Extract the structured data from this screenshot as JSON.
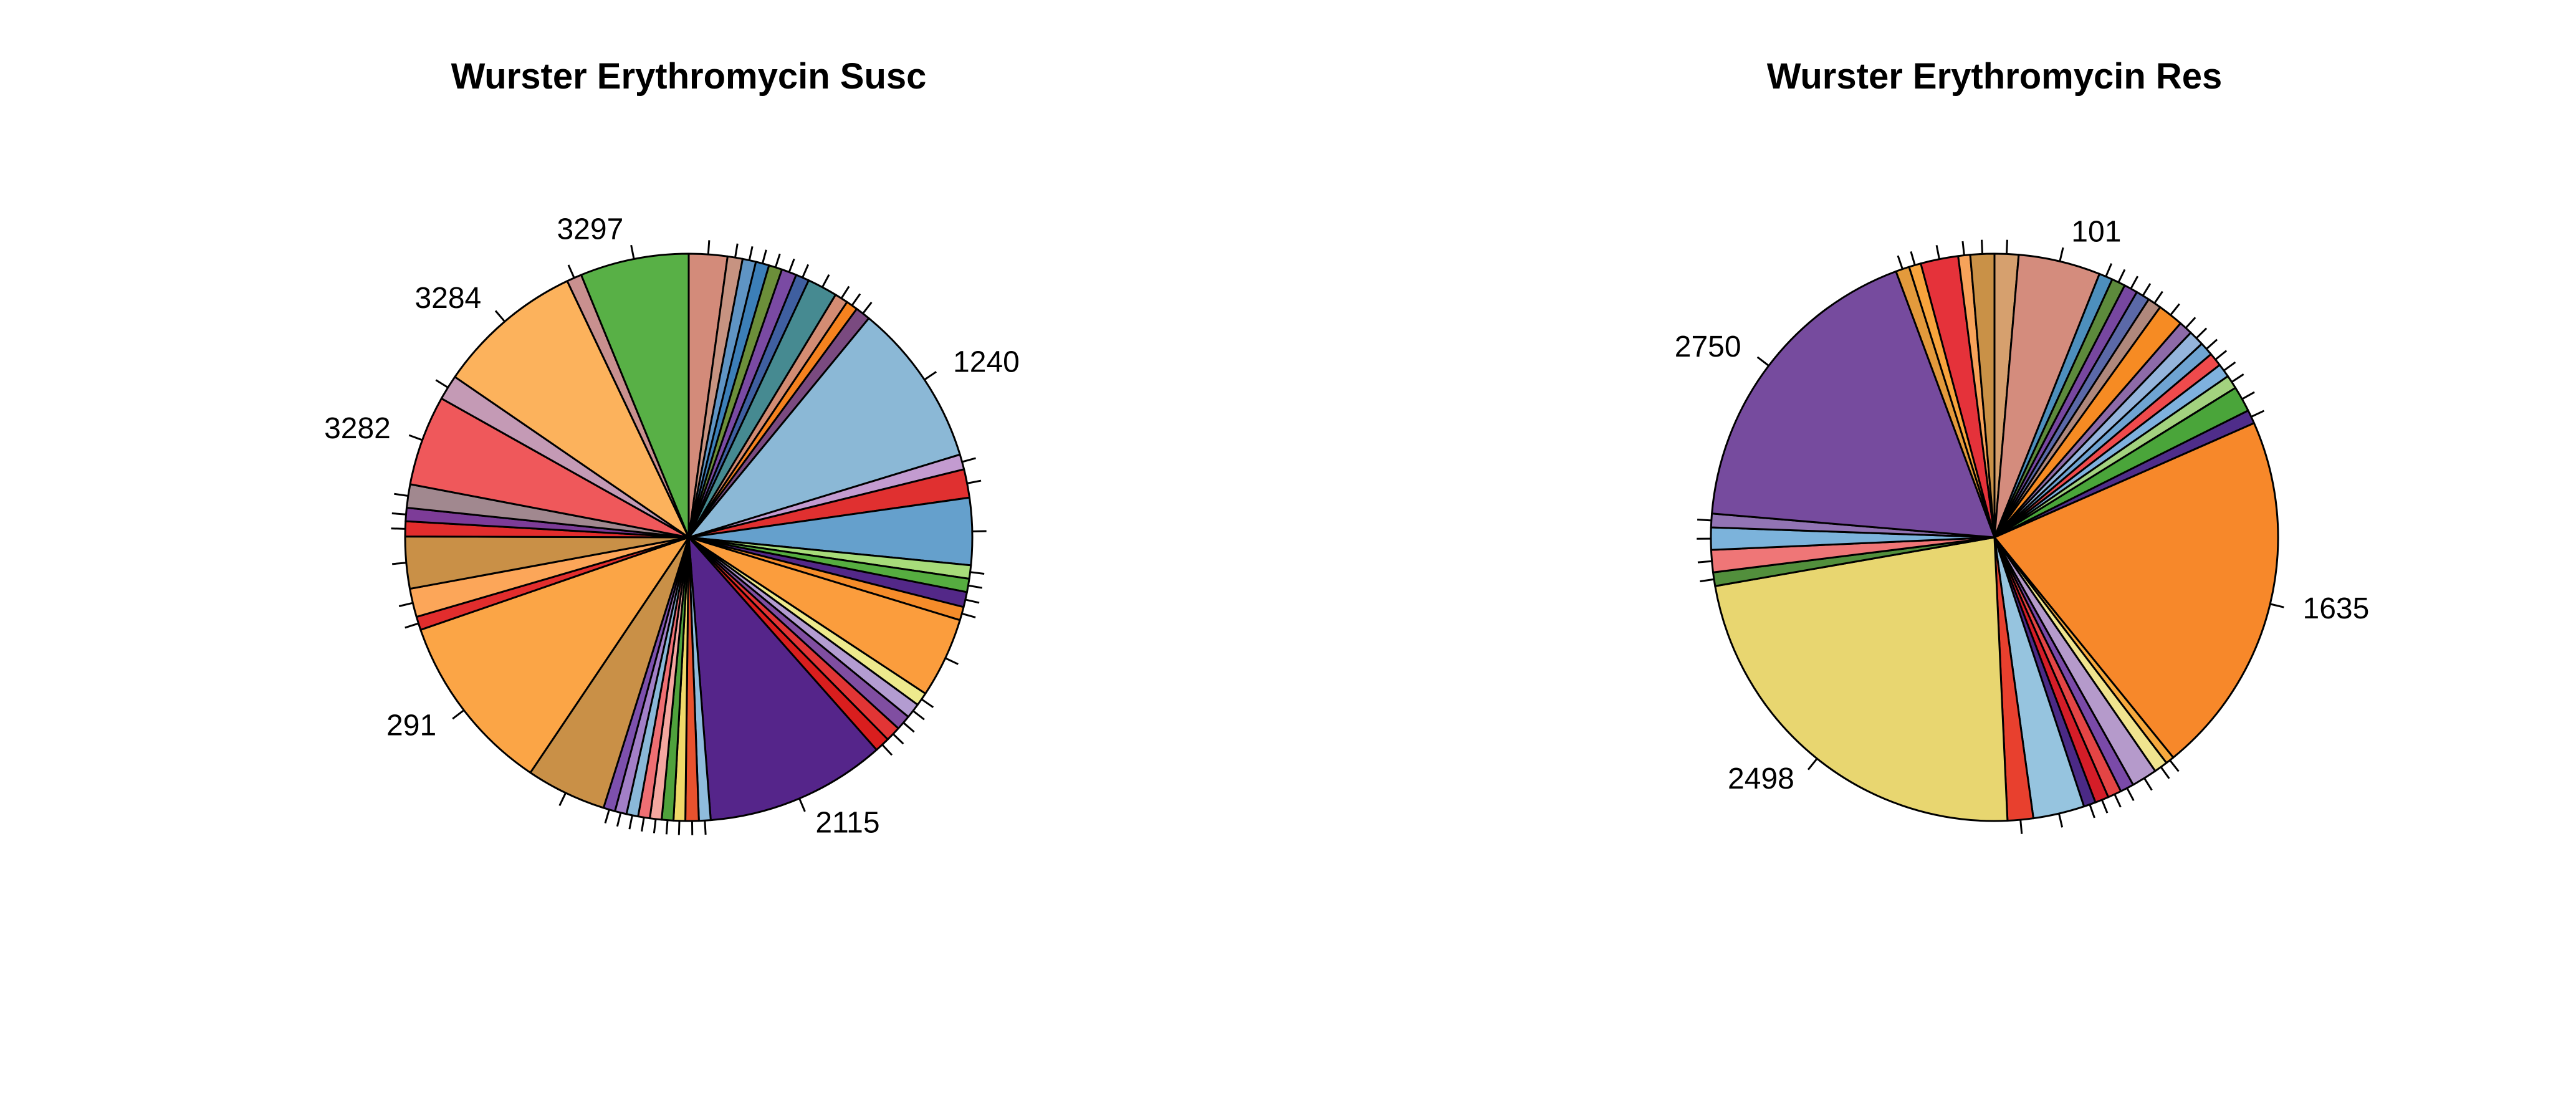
{
  "chart_data": [
    {
      "type": "pie",
      "title": "Wurster Erythromycin Susc",
      "slices": [
        {
          "label": "",
          "value": 2.3,
          "color": "#d38b7a"
        },
        {
          "label": "",
          "value": 0.9,
          "color": "#c79381"
        },
        {
          "label": "",
          "value": 0.8,
          "color": "#5f94c4"
        },
        {
          "label": "",
          "value": 0.8,
          "color": "#3c7fb8"
        },
        {
          "label": "",
          "value": 0.8,
          "color": "#6c8f3a"
        },
        {
          "label": "",
          "value": 0.9,
          "color": "#7a4aa3"
        },
        {
          "label": "",
          "value": 0.8,
          "color": "#3f5fa0"
        },
        {
          "label": "",
          "value": 1.8,
          "color": "#468a91"
        },
        {
          "label": "",
          "value": 0.8,
          "color": "#d48c73"
        },
        {
          "label": "",
          "value": 0.7,
          "color": "#f5821f"
        },
        {
          "label": "",
          "value": 0.9,
          "color": "#7a4a80"
        },
        {
          "label": "1240",
          "value": 9.8,
          "color": "#8bb8d6"
        },
        {
          "label": "",
          "value": 0.9,
          "color": "#c39bd0"
        },
        {
          "label": "",
          "value": 1.7,
          "color": "#e03030"
        },
        {
          "label": "",
          "value": 4.0,
          "color": "#65a0cc"
        },
        {
          "label": "",
          "value": 0.8,
          "color": "#a7dc7a"
        },
        {
          "label": "",
          "value": 0.8,
          "color": "#56ad40"
        },
        {
          "label": "",
          "value": 0.9,
          "color": "#532888"
        },
        {
          "label": "",
          "value": 0.8,
          "color": "#f58c2a"
        },
        {
          "label": "",
          "value": 4.8,
          "color": "#fb9d3d"
        },
        {
          "label": "",
          "value": 0.8,
          "color": "#eeea8d"
        },
        {
          "label": "",
          "value": 0.9,
          "color": "#b39cd1"
        },
        {
          "label": "",
          "value": 0.9,
          "color": "#804ea1"
        },
        {
          "label": "",
          "value": 0.9,
          "color": "#e23535"
        },
        {
          "label": "",
          "value": 0.9,
          "color": "#d91e1e"
        },
        {
          "label": "2115",
          "value": 10.8,
          "color": "#55258a"
        },
        {
          "label": "",
          "value": 0.7,
          "color": "#8fbcdc"
        },
        {
          "label": "",
          "value": 0.8,
          "color": "#e8522e"
        },
        {
          "label": "",
          "value": 0.7,
          "color": "#f0d96a"
        },
        {
          "label": "",
          "value": 0.7,
          "color": "#4fa23c"
        },
        {
          "label": "",
          "value": 0.7,
          "color": "#f4a7a0"
        },
        {
          "label": "",
          "value": 0.7,
          "color": "#ef6f73"
        },
        {
          "label": "",
          "value": 0.7,
          "color": "#8ab8d8"
        },
        {
          "label": "",
          "value": 0.7,
          "color": "#a27fc7"
        },
        {
          "label": "",
          "value": 0.7,
          "color": "#7d50ad"
        },
        {
          "label": "",
          "value": 4.8,
          "color": "#c99047"
        },
        {
          "label": "291",
          "value": 10.8,
          "color": "#fba546"
        },
        {
          "label": "",
          "value": 0.8,
          "color": "#e22d2d"
        },
        {
          "label": "",
          "value": 1.7,
          "color": "#fca659"
        },
        {
          "label": "",
          "value": 3.1,
          "color": "#c99047"
        },
        {
          "label": "",
          "value": 0.9,
          "color": "#e22d2d"
        },
        {
          "label": "",
          "value": 0.8,
          "color": "#7d3c98"
        },
        {
          "label": "",
          "value": 1.4,
          "color": "#a1888f"
        },
        {
          "label": "3282",
          "value": 5.4,
          "color": "#ef585b"
        },
        {
          "label": "",
          "value": 1.5,
          "color": "#c49ab5"
        },
        {
          "label": "3284",
          "value": 8.8,
          "color": "#fcb25c"
        },
        {
          "label": "",
          "value": 0.9,
          "color": "#c9908f"
        },
        {
          "label": "3297",
          "value": 6.5,
          "color": "#58b046"
        }
      ]
    },
    {
      "type": "pie",
      "title": "Wurster Erythromycin Res",
      "slices": [
        {
          "label": "",
          "value": 1.4,
          "color": "#d6a06e"
        },
        {
          "label": "101",
          "value": 4.8,
          "color": "#d48c7d"
        },
        {
          "label": "",
          "value": 0.8,
          "color": "#4d8fbd"
        },
        {
          "label": "",
          "value": 0.8,
          "color": "#5d8a3c"
        },
        {
          "label": "",
          "value": 0.8,
          "color": "#7747a0"
        },
        {
          "label": "",
          "value": 0.8,
          "color": "#5b69a8"
        },
        {
          "label": "",
          "value": 0.8,
          "color": "#b0887c"
        },
        {
          "label": "",
          "value": 1.5,
          "color": "#f68b23"
        },
        {
          "label": "",
          "value": 0.8,
          "color": "#8d6aa8"
        },
        {
          "label": "",
          "value": 0.9,
          "color": "#95b5dc"
        },
        {
          "label": "",
          "value": 0.8,
          "color": "#6fa4d2"
        },
        {
          "label": "",
          "value": 0.8,
          "color": "#ef4a4c"
        },
        {
          "label": "",
          "value": 0.8,
          "color": "#7fb1de"
        },
        {
          "label": "",
          "value": 0.8,
          "color": "#a3d27f"
        },
        {
          "label": "",
          "value": 1.5,
          "color": "#4aa53a"
        },
        {
          "label": "",
          "value": 0.8,
          "color": "#4f2d8a"
        },
        {
          "label": "1635",
          "value": 21.3,
          "color": "#f7882a"
        },
        {
          "label": "",
          "value": 0.5,
          "color": "#f6a93e"
        },
        {
          "label": "",
          "value": 0.8,
          "color": "#f0e48f"
        },
        {
          "label": "",
          "value": 1.5,
          "color": "#b59acb"
        },
        {
          "label": "",
          "value": 0.8,
          "color": "#7a4aa8"
        },
        {
          "label": "",
          "value": 0.8,
          "color": "#e44545"
        },
        {
          "label": "",
          "value": 0.8,
          "color": "#d41d28"
        },
        {
          "label": "",
          "value": 0.7,
          "color": "#4b2a86"
        },
        {
          "label": "",
          "value": 3.0,
          "color": "#96c4df"
        },
        {
          "label": "",
          "value": 1.5,
          "color": "#e8402e"
        },
        {
          "label": "2498",
          "value": 23.6,
          "color": "#e8d670"
        },
        {
          "label": "",
          "value": 0.8,
          "color": "#528f3c"
        },
        {
          "label": "",
          "value": 1.3,
          "color": "#ef7677"
        },
        {
          "label": "",
          "value": 1.3,
          "color": "#7cb3db"
        },
        {
          "label": "",
          "value": 0.8,
          "color": "#9274b4"
        },
        {
          "label": "2750",
          "value": 18.5,
          "color": "#764b9e"
        },
        {
          "label": "",
          "value": 0.8,
          "color": "#e39a3c"
        },
        {
          "label": "",
          "value": 0.7,
          "color": "#f7a43d"
        },
        {
          "label": "",
          "value": 2.2,
          "color": "#e5323a"
        },
        {
          "label": "",
          "value": 0.7,
          "color": "#f7a35a"
        },
        {
          "label": "",
          "value": 1.4,
          "color": "#c99147"
        }
      ]
    }
  ]
}
